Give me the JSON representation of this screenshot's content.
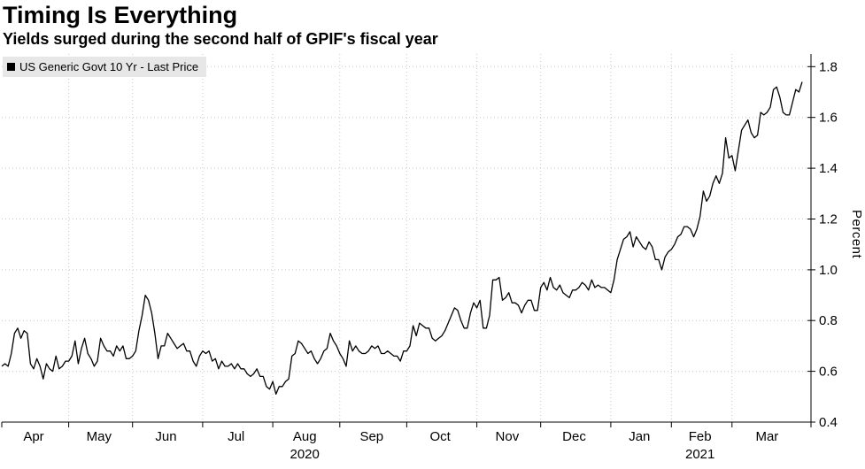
{
  "header": {
    "title": "Timing Is Everything",
    "subtitle": "Yields surged during the second half of GPIF's fiscal year"
  },
  "legend": {
    "marker": "black-square",
    "label": "US Generic Govt 10 Yr - Last Price"
  },
  "colors": {
    "line": "#000000",
    "grid": "#c9c9c9",
    "axis": "#000000",
    "text": "#000000",
    "legend_bg": "#e7e7e7",
    "background": "#ffffff"
  },
  "chart_data": {
    "type": "line",
    "title": "Timing Is Everything",
    "subtitle": "Yields surged during the second half of GPIF's fiscal year",
    "series_name": "US Generic Govt 10 Yr - Last Price",
    "ylabel": "Percent",
    "ylim": [
      0.4,
      1.85
    ],
    "yticks": [
      0.4,
      0.6,
      0.8,
      1.0,
      1.2,
      1.4,
      1.6,
      1.8
    ],
    "y_axis_side": "right",
    "grid": "dotted",
    "legend_position": "top-left",
    "year_labels": [
      {
        "label": "2020",
        "under_month": "Aug"
      },
      {
        "label": "2021",
        "under_month": "Feb"
      }
    ],
    "months": [
      {
        "label": "Apr",
        "values": [
          0.62,
          0.63,
          0.62,
          0.67,
          0.75,
          0.77,
          0.73,
          0.76,
          0.75,
          0.63,
          0.61,
          0.65,
          0.62,
          0.57,
          0.63,
          0.61,
          0.6,
          0.66,
          0.61,
          0.62,
          0.64
        ]
      },
      {
        "label": "May",
        "values": [
          0.64,
          0.66,
          0.72,
          0.63,
          0.69,
          0.73,
          0.67,
          0.65,
          0.62,
          0.64,
          0.73,
          0.7,
          0.68,
          0.68,
          0.66,
          0.7,
          0.68,
          0.7,
          0.65,
          0.65
        ]
      },
      {
        "label": "Jun",
        "values": [
          0.66,
          0.68,
          0.76,
          0.82,
          0.9,
          0.88,
          0.83,
          0.75,
          0.65,
          0.7,
          0.7,
          0.75,
          0.73,
          0.71,
          0.69,
          0.7,
          0.71,
          0.68,
          0.68,
          0.64,
          0.62,
          0.66
        ]
      },
      {
        "label": "Jul",
        "values": [
          0.68,
          0.67,
          0.68,
          0.64,
          0.65,
          0.61,
          0.64,
          0.62,
          0.62,
          0.63,
          0.61,
          0.63,
          0.61,
          0.61,
          0.59,
          0.58,
          0.59,
          0.61,
          0.58,
          0.58,
          0.54,
          0.53
        ]
      },
      {
        "label": "Aug",
        "values": [
          0.56,
          0.51,
          0.54,
          0.54,
          0.56,
          0.57,
          0.66,
          0.67,
          0.72,
          0.71,
          0.69,
          0.67,
          0.68,
          0.65,
          0.63,
          0.65,
          0.68,
          0.69,
          0.75,
          0.72,
          0.7
        ]
      },
      {
        "label": "Sep",
        "values": [
          0.67,
          0.65,
          0.62,
          0.72,
          0.68,
          0.7,
          0.68,
          0.67,
          0.67,
          0.68,
          0.7,
          0.69,
          0.7,
          0.67,
          0.67,
          0.68,
          0.67,
          0.66,
          0.66,
          0.64,
          0.68
        ]
      },
      {
        "label": "Oct",
        "values": [
          0.68,
          0.7,
          0.78,
          0.74,
          0.79,
          0.78,
          0.77,
          0.77,
          0.73,
          0.72,
          0.73,
          0.74,
          0.76,
          0.79,
          0.82,
          0.85,
          0.84,
          0.8,
          0.77,
          0.77,
          0.83,
          0.87
        ]
      },
      {
        "label": "Nov",
        "values": [
          0.85,
          0.88,
          0.77,
          0.77,
          0.82,
          0.96,
          0.96,
          0.97,
          0.88,
          0.89,
          0.91,
          0.87,
          0.87,
          0.86,
          0.83,
          0.86,
          0.88,
          0.88,
          0.84,
          0.84
        ]
      },
      {
        "label": "Dec",
        "values": [
          0.93,
          0.95,
          0.92,
          0.97,
          0.93,
          0.92,
          0.94,
          0.91,
          0.9,
          0.89,
          0.92,
          0.92,
          0.93,
          0.95,
          0.94,
          0.92,
          0.96,
          0.93,
          0.94,
          0.93,
          0.93,
          0.92
        ]
      },
      {
        "label": "Jan",
        "values": [
          0.91,
          0.96,
          1.04,
          1.08,
          1.12,
          1.13,
          1.15,
          1.09,
          1.13,
          1.11,
          1.09,
          1.08,
          1.11,
          1.09,
          1.04,
          1.04,
          1.0,
          1.05,
          1.07
        ]
      },
      {
        "label": "Feb",
        "values": [
          1.08,
          1.1,
          1.13,
          1.14,
          1.17,
          1.17,
          1.16,
          1.13,
          1.16,
          1.21,
          1.31,
          1.27,
          1.29,
          1.34,
          1.37,
          1.34,
          1.38,
          1.52,
          1.44
        ]
      },
      {
        "label": "Mar",
        "values": [
          1.45,
          1.39,
          1.47,
          1.55,
          1.57,
          1.59,
          1.54,
          1.52,
          1.53,
          1.62,
          1.61,
          1.62,
          1.64,
          1.71,
          1.72,
          1.68,
          1.62,
          1.61,
          1.61,
          1.66,
          1.71,
          1.7,
          1.74
        ]
      }
    ]
  }
}
